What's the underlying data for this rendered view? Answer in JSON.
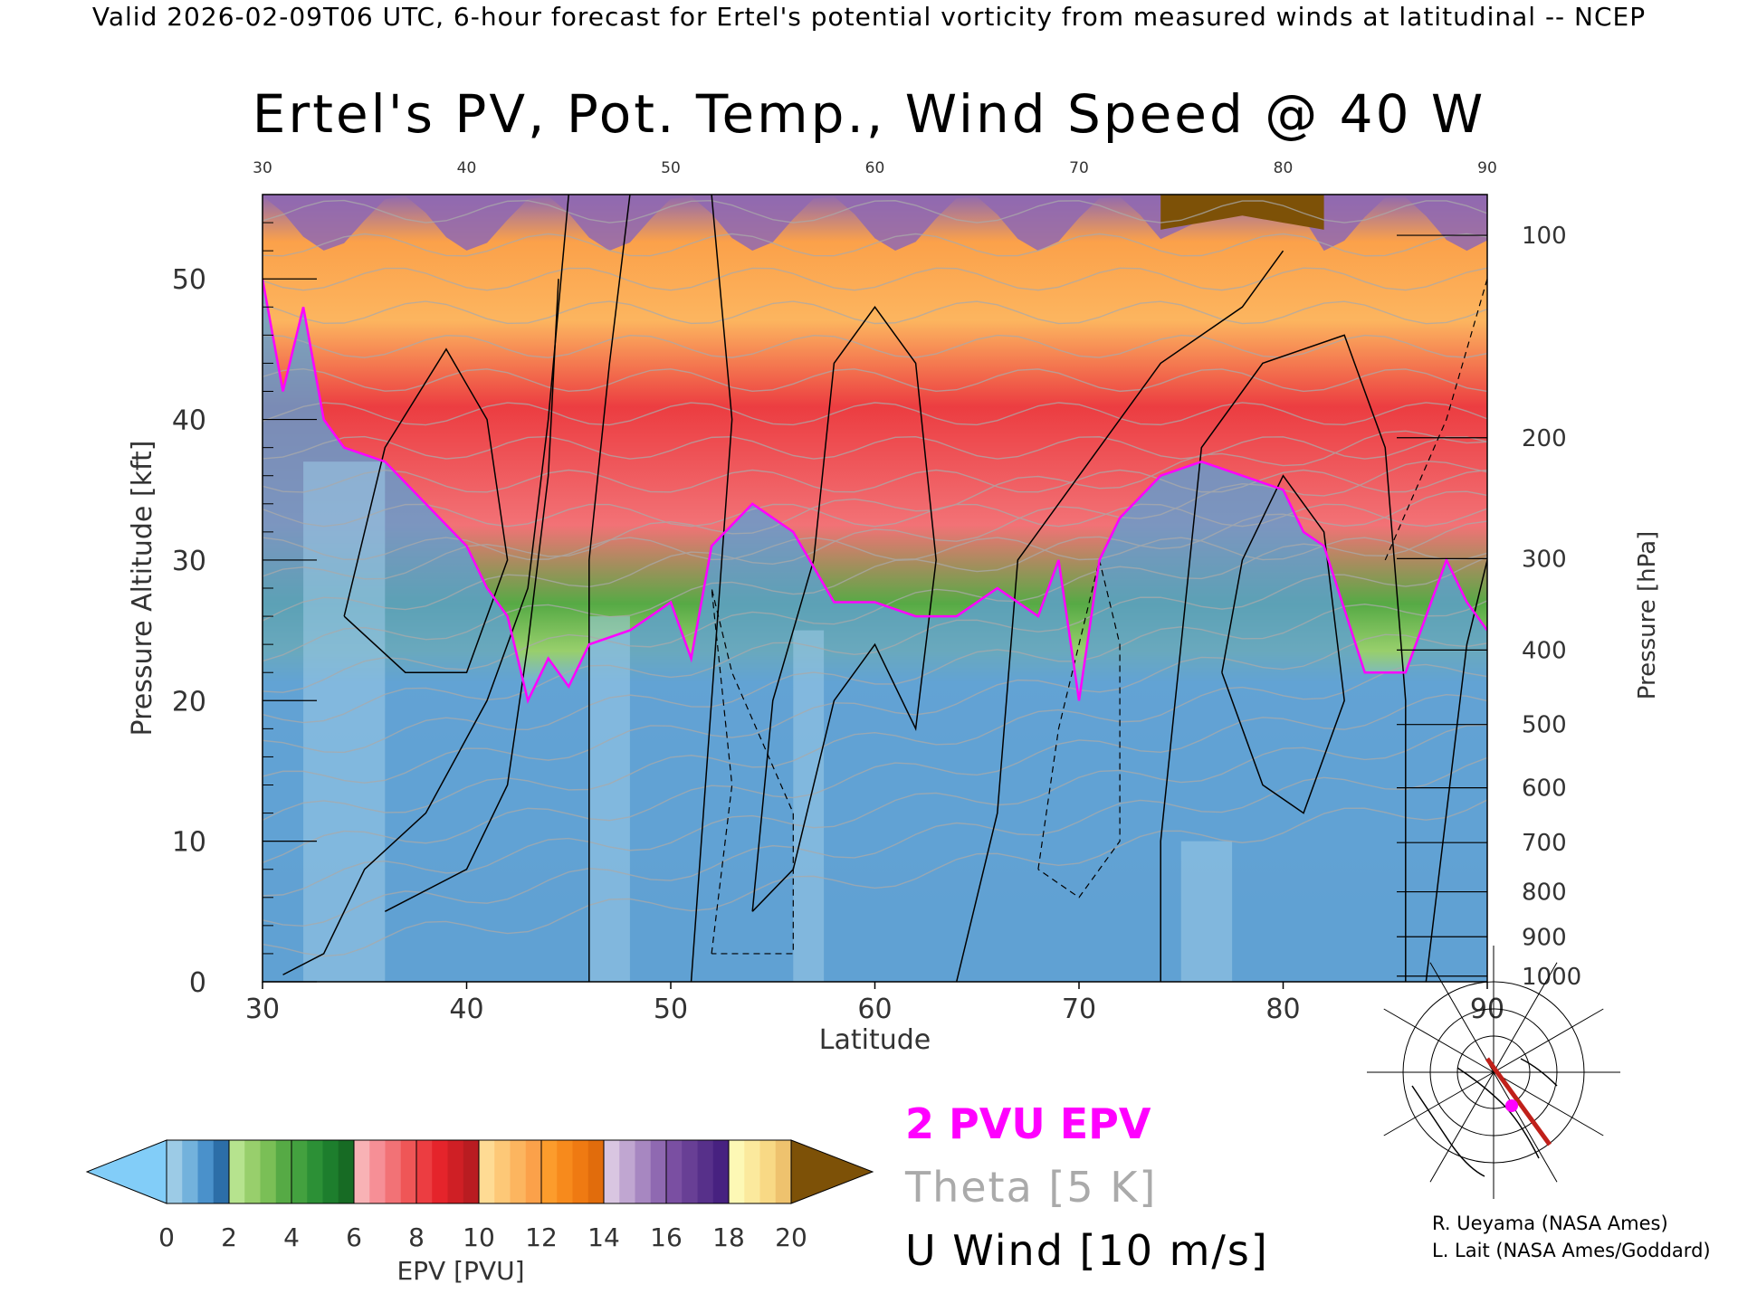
{
  "header": "Valid 2026-02-09T06 UTC, 6-hour forecast for Ertel's potential vorticity from measured winds at latitudinal -- NCEP",
  "title": "Ertel's PV, Pot. Temp., Wind Speed @ 40 W",
  "chart_data": {
    "type": "heatmap",
    "title": "Ertel's PV, Pot. Temp., Wind Speed @ 40 W",
    "xlabel": "Latitude",
    "ylabel": "Pressure Altitude [kft]",
    "y2label": "Pressure [hPa]",
    "xlim": [
      30,
      90
    ],
    "ylim": [
      0,
      56
    ],
    "x_ticks": [
      "30",
      "40",
      "50",
      "60",
      "70",
      "80",
      "90"
    ],
    "top_ticks": [
      "30",
      "40",
      "50",
      "60",
      "70",
      "80",
      "90"
    ],
    "y_ticks": [
      "0",
      "10",
      "20",
      "30",
      "40",
      "50"
    ],
    "pressure_ticks": [
      {
        "label": "100",
        "kft": 53.1
      },
      {
        "label": "200",
        "kft": 38.7
      },
      {
        "label": "300",
        "kft": 30.1
      },
      {
        "label": "400",
        "kft": 23.6
      },
      {
        "label": "500",
        "kft": 18.3
      },
      {
        "label": "600",
        "kft": 13.8
      },
      {
        "label": "700",
        "kft": 9.9
      },
      {
        "label": "800",
        "kft": 6.4
      },
      {
        "label": "900",
        "kft": 3.2
      },
      {
        "label": "1000",
        "kft": 0.4
      }
    ],
    "pv_2pvu_height_kft": [
      [
        30,
        50
      ],
      [
        31,
        42
      ],
      [
        32,
        48
      ],
      [
        33,
        40
      ],
      [
        34,
        38
      ],
      [
        36,
        37
      ],
      [
        38,
        34
      ],
      [
        40,
        31
      ],
      [
        41,
        28
      ],
      [
        42,
        26
      ],
      [
        43,
        20
      ],
      [
        44,
        23
      ],
      [
        45,
        21
      ],
      [
        46,
        24
      ],
      [
        48,
        25
      ],
      [
        50,
        27
      ],
      [
        51,
        23
      ],
      [
        52,
        31
      ],
      [
        54,
        34
      ],
      [
        56,
        32
      ],
      [
        58,
        27
      ],
      [
        60,
        27
      ],
      [
        62,
        26
      ],
      [
        64,
        26
      ],
      [
        66,
        28
      ],
      [
        68,
        26
      ],
      [
        69,
        30
      ],
      [
        70,
        20
      ],
      [
        71,
        30
      ],
      [
        72,
        33
      ],
      [
        74,
        36
      ],
      [
        76,
        37
      ],
      [
        78,
        36
      ],
      [
        80,
        35
      ],
      [
        81,
        32
      ],
      [
        82,
        31
      ],
      [
        84,
        22
      ],
      [
        86,
        22
      ],
      [
        88,
        30
      ],
      [
        89,
        27
      ],
      [
        90,
        25
      ]
    ],
    "colorbar": {
      "label": "EPV [PVU]",
      "ticks": [
        "0",
        "2",
        "4",
        "6",
        "8",
        "10",
        "12",
        "14",
        "16",
        "18",
        "20"
      ],
      "under_color": "#82cdf8",
      "over_color": "#7d5107",
      "colors": [
        "#9ccbe6",
        "#73b2dc",
        "#4a91cb",
        "#2c6ea8",
        "#b6e38e",
        "#98cf6c",
        "#7abf56",
        "#56aa45",
        "#43a13f",
        "#2c9036",
        "#1d7e2d",
        "#176b24",
        "#f8b2b5",
        "#f68f96",
        "#f27276",
        "#ef5657",
        "#ec3d41",
        "#e5242b",
        "#cf1f25",
        "#b91c21",
        "#fedb94",
        "#fdc877",
        "#fcb55f",
        "#fba14a",
        "#fc9c2c",
        "#f78a1c",
        "#ef7a12",
        "#e16c0c",
        "#d9c6e1",
        "#c0a6d1",
        "#a787c1",
        "#8f69b1",
        "#7a4fa2",
        "#683f95",
        "#57308a",
        "#472180",
        "#fdf8b5",
        "#fbe99d",
        "#f8d985",
        "#eec26e"
      ]
    }
  },
  "legend": {
    "pv": "2 PVU EPV",
    "theta": "Theta [5 K]",
    "u": "U Wind [10 m/s]"
  },
  "credits": {
    "line1": "R. Ueyama (NASA Ames)",
    "line2": "L. Lait (NASA Ames/Goddard)"
  },
  "colors": {
    "pv_contour": "#ff00ff",
    "theta_contour": "#aaaaaa",
    "wind_contour": "#000000",
    "section_line": "#c0201a"
  }
}
